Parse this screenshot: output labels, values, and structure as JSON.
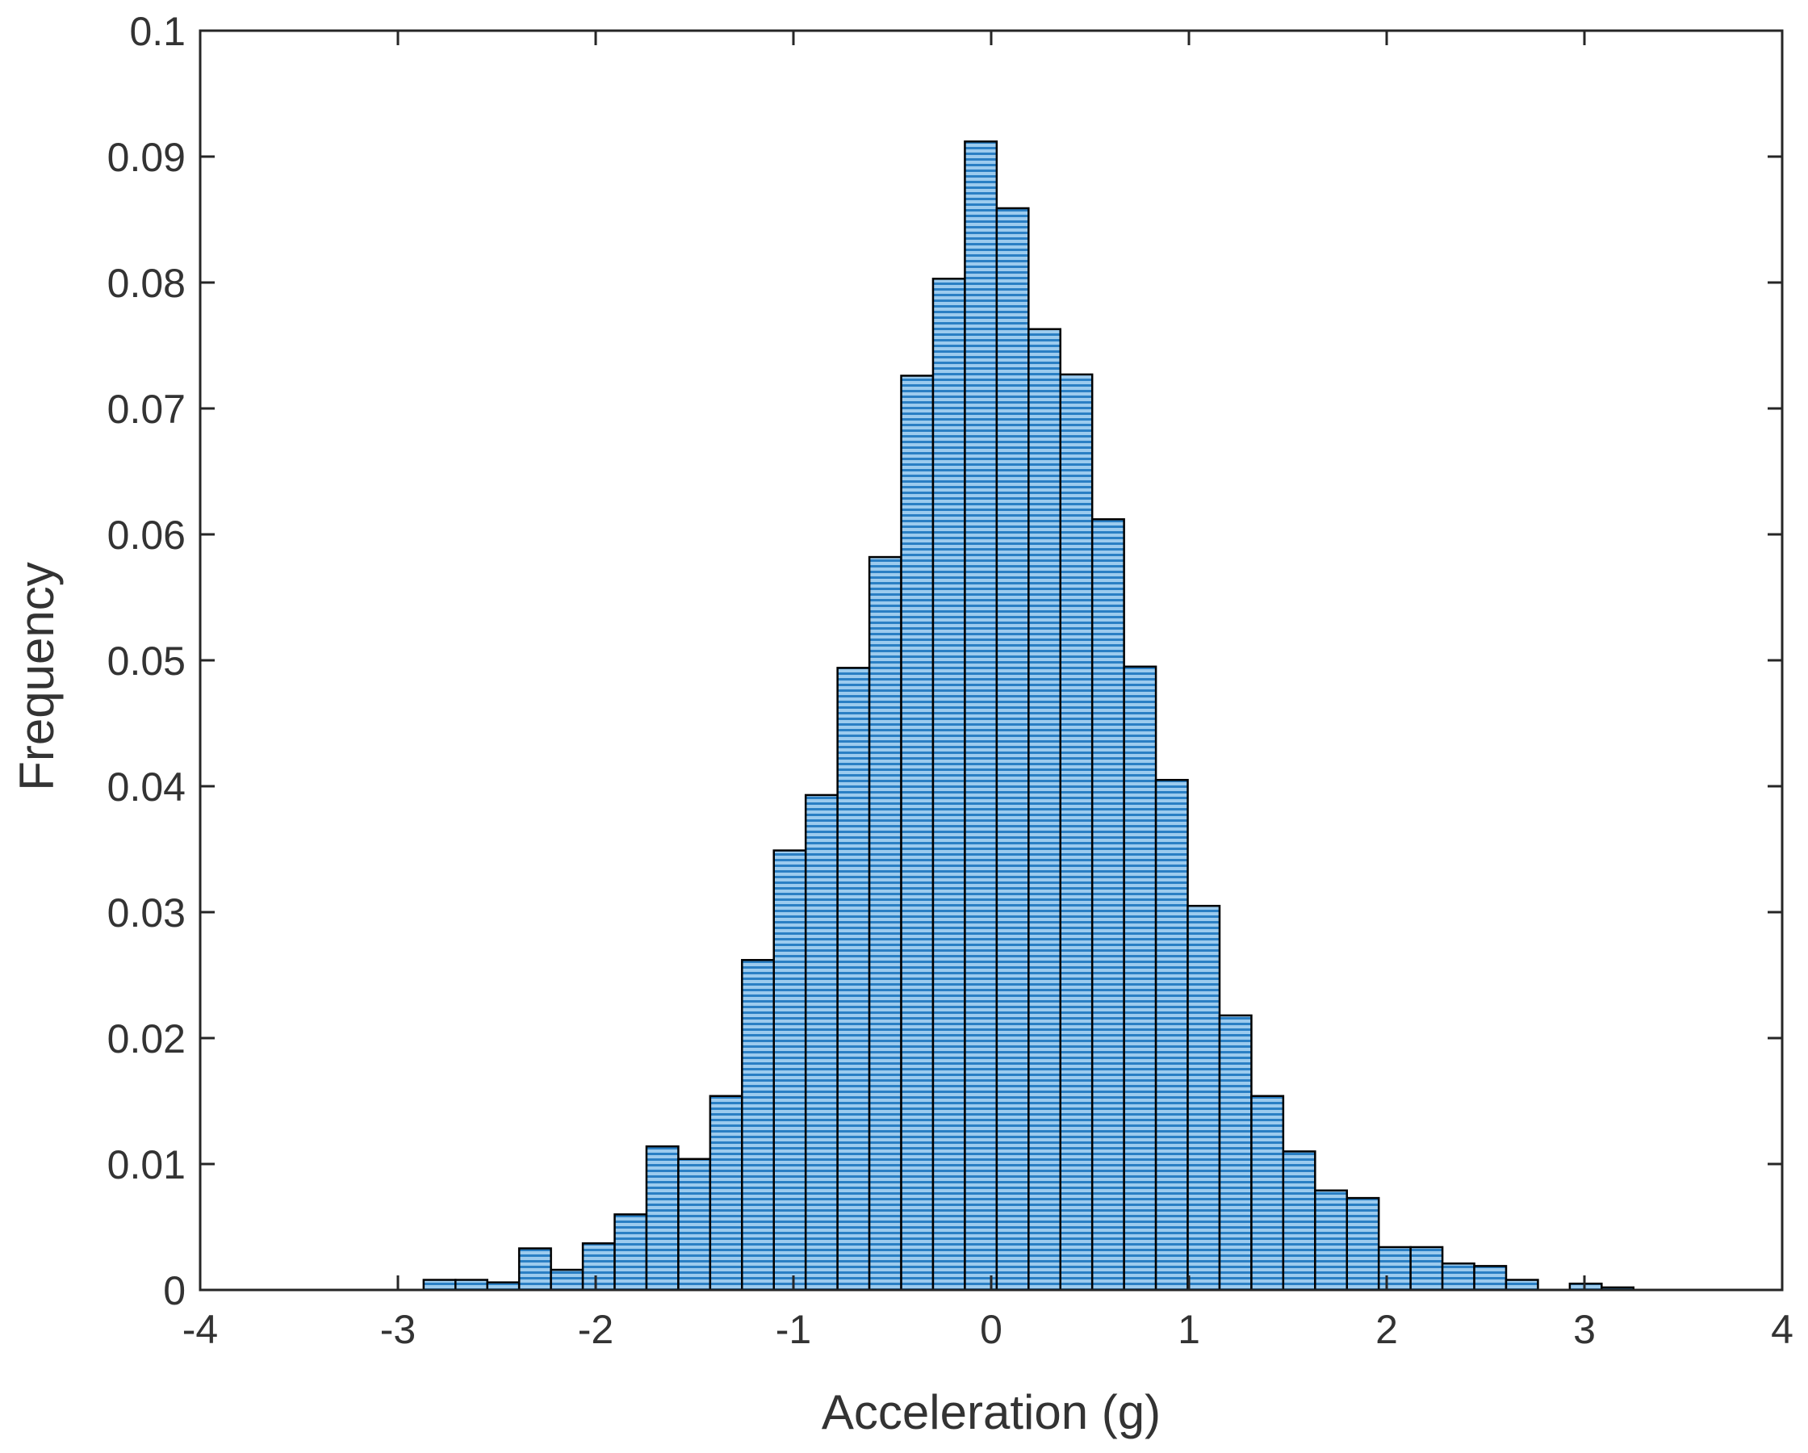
{
  "chart_data": {
    "type": "bar",
    "title": "",
    "xlabel": "Acceleration (g)",
    "ylabel": "Frequency",
    "xlim": [
      -4,
      4
    ],
    "ylim": [
      0,
      0.1
    ],
    "xticks": [
      -4,
      -3,
      -2,
      -1,
      0,
      1,
      2,
      3,
      4
    ],
    "yticks": [
      0,
      0.01,
      0.02,
      0.03,
      0.04,
      0.05,
      0.06,
      0.07,
      0.08,
      0.09,
      0.1
    ],
    "xtick_labels": [
      "-4",
      "-3",
      "-2",
      "-1",
      "0",
      "1",
      "2",
      "3",
      "4"
    ],
    "ytick_labels": [
      "0",
      "0.01",
      "0.02",
      "0.03",
      "0.04",
      "0.05",
      "0.06",
      "0.07",
      "0.08",
      "0.09",
      "0.1"
    ],
    "grid": false,
    "bin_width": 0.161,
    "bins": [
      {
        "x0": -2.87,
        "value": 0.0008
      },
      {
        "x0": -2.709,
        "value": 0.0008
      },
      {
        "x0": -2.548,
        "value": 0.0006
      },
      {
        "x0": -2.387,
        "value": 0.0033
      },
      {
        "x0": -2.226,
        "value": 0.0016
      },
      {
        "x0": -2.065,
        "value": 0.0037
      },
      {
        "x0": -1.904,
        "value": 0.006
      },
      {
        "x0": -1.743,
        "value": 0.0114
      },
      {
        "x0": -1.582,
        "value": 0.0104
      },
      {
        "x0": -1.421,
        "value": 0.0154
      },
      {
        "x0": -1.26,
        "value": 0.0262
      },
      {
        "x0": -1.099,
        "value": 0.0349
      },
      {
        "x0": -0.938,
        "value": 0.0393
      },
      {
        "x0": -0.777,
        "value": 0.0494
      },
      {
        "x0": -0.616,
        "value": 0.0582
      },
      {
        "x0": -0.455,
        "value": 0.0726
      },
      {
        "x0": -0.294,
        "value": 0.0803
      },
      {
        "x0": -0.133,
        "value": 0.0912
      },
      {
        "x0": 0.028,
        "value": 0.0859
      },
      {
        "x0": 0.189,
        "value": 0.0763
      },
      {
        "x0": 0.35,
        "value": 0.0727
      },
      {
        "x0": 0.511,
        "value": 0.0612
      },
      {
        "x0": 0.672,
        "value": 0.0495
      },
      {
        "x0": 0.833,
        "value": 0.0405
      },
      {
        "x0": 0.994,
        "value": 0.0305
      },
      {
        "x0": 1.155,
        "value": 0.0218
      },
      {
        "x0": 1.316,
        "value": 0.0154
      },
      {
        "x0": 1.477,
        "value": 0.011
      },
      {
        "x0": 1.638,
        "value": 0.0079
      },
      {
        "x0": 1.799,
        "value": 0.0073
      },
      {
        "x0": 1.96,
        "value": 0.0034
      },
      {
        "x0": 2.121,
        "value": 0.0034
      },
      {
        "x0": 2.282,
        "value": 0.0021
      },
      {
        "x0": 2.443,
        "value": 0.0019
      },
      {
        "x0": 2.604,
        "value": 0.0008
      },
      {
        "x0": 2.765,
        "value": 0.0
      },
      {
        "x0": 2.926,
        "value": 0.0005
      },
      {
        "x0": 3.087,
        "value": 0.0002
      }
    ]
  },
  "colors": {
    "bar_fill": "#9ccbee",
    "bar_stripe": "#2a7fc4",
    "bar_edge": "#000000",
    "axis": "#262626",
    "text": "#333333"
  }
}
